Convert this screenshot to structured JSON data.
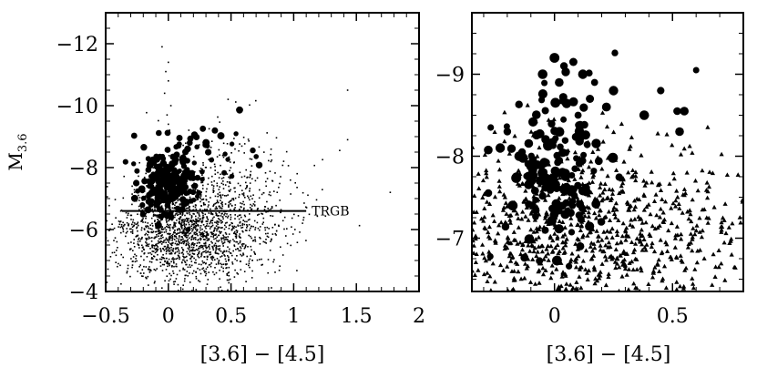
{
  "chart_data": [
    {
      "type": "scatter",
      "xlabel": "[3.6] − [4.5]",
      "ylabel": "M",
      "ylabel_sub": "3.6",
      "xlim": [
        -0.5,
        2.0
      ],
      "ylim": [
        -4,
        -13
      ],
      "y_inverted": true,
      "xticks": [
        -0.5,
        0,
        0.5,
        1,
        1.5,
        2
      ],
      "xtick_labels": [
        "−0.5",
        "0",
        "0.5",
        "1",
        "1.5",
        "2"
      ],
      "yticks": [
        -4,
        -6,
        -8,
        -10,
        -12
      ],
      "ytick_labels": [
        "−4",
        "−6",
        "−8",
        "−10",
        "−12"
      ],
      "grid": false,
      "annotations": [
        {
          "text": "TRGB",
          "kind": "horizontal-line",
          "y": -6.6,
          "x_range": [
            -0.37,
            1.1
          ]
        }
      ],
      "series": [
        {
          "marker": "small-dot",
          "x": [
            -0.05,
            0.0,
            -0.02,
            0.0,
            -0.03,
            0.02,
            -0.01,
            0.0,
            1.43,
            1.43,
            1.77
          ],
          "y": [
            -11.9,
            -11.4,
            -11.1,
            -10.8,
            -10.4,
            -10.0,
            -9.7,
            -9.4,
            -10.5,
            -8.9,
            -7.2
          ]
        }
      ],
      "generated_clouds": [
        {
          "cx": 0.1,
          "cy": -5.9,
          "sx": 0.28,
          "sy": 0.75,
          "n": 1400,
          "marker": "small-dot"
        },
        {
          "cx": 0.45,
          "cy": -6.2,
          "sx": 0.3,
          "sy": 0.9,
          "n": 500,
          "marker": "small-dot"
        },
        {
          "cx": 0.0,
          "cy": -7.5,
          "sx": 0.12,
          "sy": 0.55,
          "n": 220,
          "marker": "filled-circle"
        },
        {
          "cx": 0.2,
          "cy": -8.6,
          "sx": 0.25,
          "sy": 0.45,
          "n": 30,
          "marker": "filled-circle"
        },
        {
          "cx": 0.55,
          "cy": -7.8,
          "sx": 0.3,
          "sy": 1.0,
          "n": 150,
          "marker": "small-dot"
        }
      ]
    },
    {
      "type": "scatter",
      "xlabel": "[3.6] − [4.5]",
      "xlim": [
        -0.35,
        0.8
      ],
      "ylim": [
        -6.35,
        -9.75
      ],
      "y_inverted": true,
      "xticks": [
        0,
        0.5
      ],
      "xtick_labels": [
        "0",
        "0.5"
      ],
      "yticks": [
        -7,
        -8,
        -9
      ],
      "ytick_labels": [
        "−7",
        "−8",
        "−9"
      ],
      "grid": false,
      "series": [
        {
          "marker": "filled-circle",
          "x": [
            -0.27,
            -0.2,
            -0.23,
            -0.15,
            -0.28,
            -0.1,
            -0.05,
            0.0,
            0.04,
            0.08,
            0.02,
            0.12,
            0.15,
            0.17,
            0.1,
            0.22,
            0.25,
            0.38,
            0.45,
            0.52,
            0.55,
            0.6,
            0.53
          ],
          "y": [
            -8.35,
            -8.3,
            -8.1,
            -8.0,
            -7.55,
            -7.7,
            -9.0,
            -9.2,
            -9.1,
            -9.15,
            -8.9,
            -9.0,
            -8.7,
            -8.9,
            -8.5,
            -8.6,
            -8.8,
            -8.5,
            -8.8,
            -8.55,
            -8.55,
            -9.05,
            -8.3
          ]
        }
      ],
      "generated_clouds": [
        {
          "cx": 0.0,
          "cy": -7.9,
          "sx": 0.1,
          "sy": 0.45,
          "n": 150,
          "marker": "filled-circle"
        },
        {
          "cx": 0.1,
          "cy": -7.0,
          "sx": 0.35,
          "sy": 0.6,
          "n": 1100,
          "marker": "triangle"
        }
      ]
    }
  ]
}
